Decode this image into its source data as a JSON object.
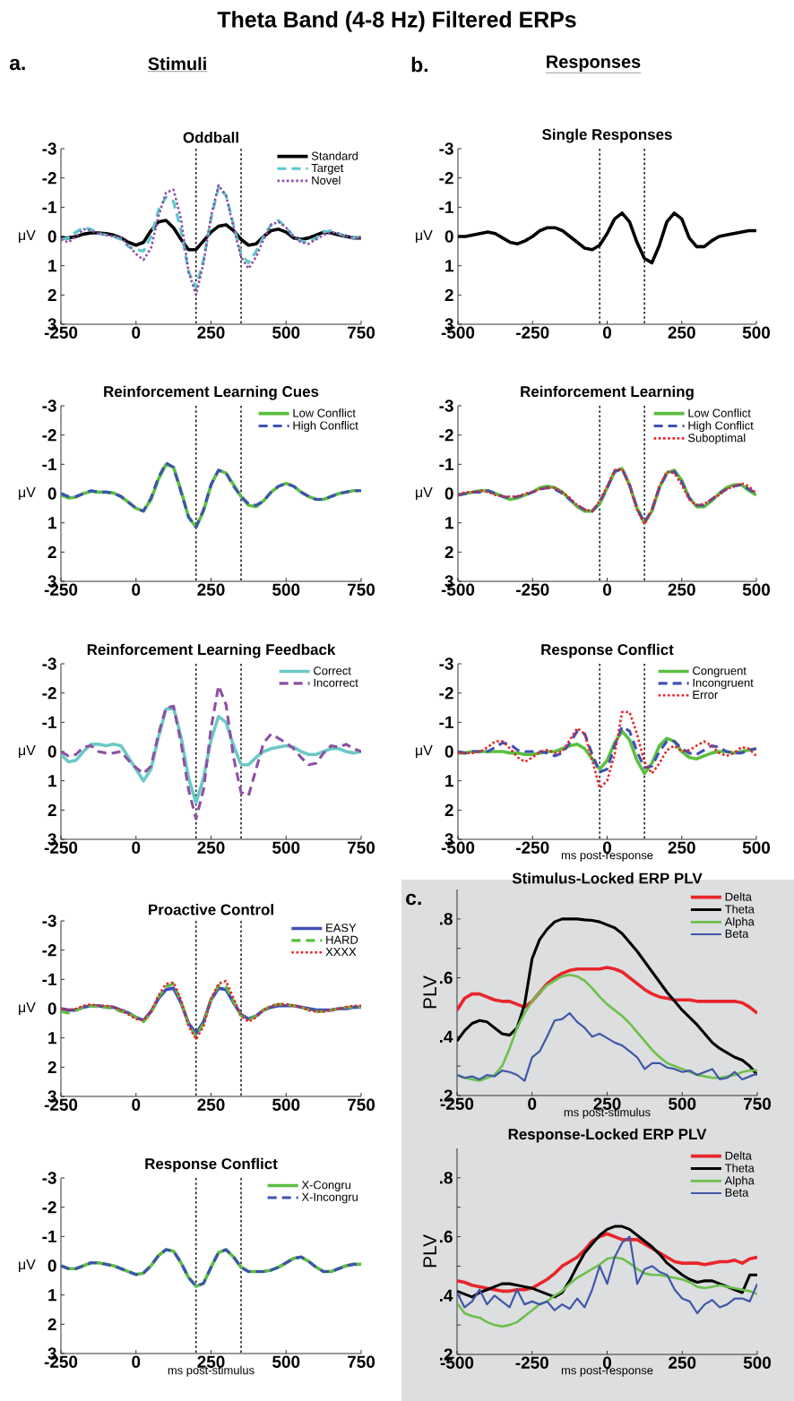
{
  "chart_data": [
    {
      "type": "line",
      "title": "Oddball",
      "ylabel": "μV",
      "annotations": [
        "Theta Band (4-8 Hz) Filtered ERPs",
        "a.",
        "Stimuli"
      ],
      "legend": "top right",
      "xlim": [
        -250,
        750
      ],
      "xticks": [
        -250,
        0,
        250,
        500,
        750
      ],
      "ylim": [
        3,
        -3
      ],
      "yticks": [
        -3,
        -2,
        -1,
        0,
        1,
        2,
        3
      ],
      "x": [
        -250,
        -225,
        -200,
        -175,
        -150,
        -125,
        -100,
        -75,
        -50,
        -25,
        0,
        25,
        50,
        75,
        100,
        125,
        150,
        175,
        200,
        225,
        250,
        275,
        300,
        325,
        350,
        375,
        400,
        425,
        450,
        475,
        500,
        525,
        550,
        575,
        600,
        625,
        650,
        675,
        700,
        725,
        750
      ],
      "ref_lines": [
        {
          "axis": "x",
          "value": 200,
          "color": "#000000",
          "line_style": "dotted"
        },
        {
          "axis": "x",
          "value": 350,
          "color": "#000000",
          "line_style": "dotted"
        }
      ],
      "series": [
        {
          "name": "Standard",
          "color": "#000000",
          "line_style": "solid",
          "values": [
            0.05,
            0.05,
            0,
            -0.08,
            -0.12,
            -0.12,
            -0.1,
            -0.05,
            0.05,
            0.2,
            0.3,
            0.2,
            -0.2,
            -0.5,
            -0.55,
            -0.3,
            0.1,
            0.45,
            0.45,
            0.15,
            -0.15,
            -0.35,
            -0.4,
            -0.2,
            0.1,
            0.3,
            0.25,
            0,
            -0.2,
            -0.25,
            -0.15,
            0.05,
            0.1,
            0.05,
            -0.05,
            -0.15,
            -0.12,
            -0.05,
            0,
            0.05,
            0.05
          ]
        },
        {
          "name": "Target",
          "color": "#5bc8cc",
          "line_style": "dashed",
          "values": [
            0.1,
            0.05,
            -0.15,
            -0.3,
            -0.25,
            -0.1,
            -0.05,
            0,
            0.1,
            0.35,
            0.45,
            0.5,
            0,
            -0.9,
            -1.35,
            -1.2,
            -0.2,
            1.2,
            1.75,
            0.8,
            -0.6,
            -1.7,
            -1.4,
            -0.4,
            0.6,
            0.9,
            0.5,
            0,
            -0.4,
            -0.55,
            -0.3,
            0,
            0.15,
            0.2,
            0.05,
            -0.15,
            -0.2,
            -0.1,
            0,
            0.05,
            0
          ]
        },
        {
          "name": "Novel",
          "color": "#8e50a6",
          "line_style": "dotted",
          "values": [
            0.1,
            0.2,
            0,
            -0.25,
            -0.2,
            -0.1,
            -0.05,
            0,
            0.05,
            0.3,
            0.6,
            0.8,
            0.4,
            -0.7,
            -1.5,
            -1.6,
            -0.6,
            1.2,
            2.0,
            0.9,
            -0.7,
            -1.75,
            -1.4,
            -0.3,
            0.7,
            1.1,
            0.7,
            0.1,
            -0.4,
            -0.5,
            -0.3,
            0,
            0.2,
            0.25,
            0.1,
            -0.05,
            -0.15,
            -0.1,
            0,
            0.05,
            0.05
          ]
        }
      ]
    },
    {
      "type": "line",
      "title": "Reinforcement Learning Cues",
      "ylabel": "μV",
      "legend": "top right",
      "xlim": [
        -250,
        750
      ],
      "xticks": [
        -250,
        0,
        250,
        500,
        750
      ],
      "ylim": [
        3,
        -3
      ],
      "yticks": [
        -3,
        -2,
        -1,
        0,
        1,
        2,
        3
      ],
      "x": [
        -250,
        -225,
        -200,
        -175,
        -150,
        -125,
        -100,
        -75,
        -50,
        -25,
        0,
        25,
        50,
        75,
        100,
        125,
        150,
        175,
        200,
        225,
        250,
        275,
        300,
        325,
        350,
        375,
        400,
        425,
        450,
        475,
        500,
        525,
        550,
        575,
        600,
        625,
        650,
        675,
        700,
        725,
        750
      ],
      "ref_lines": [
        {
          "axis": "x",
          "value": 200,
          "color": "#000000",
          "line_style": "dotted"
        },
        {
          "axis": "x",
          "value": 350,
          "color": "#000000",
          "line_style": "dotted"
        }
      ],
      "series": [
        {
          "name": "Low Conflict",
          "color": "#5cbf3f",
          "line_style": "solid",
          "values": [
            0.05,
            0.15,
            0.12,
            0,
            -0.08,
            -0.05,
            -0.05,
            -0.02,
            0.1,
            0.3,
            0.5,
            0.6,
            0.2,
            -0.5,
            -1.0,
            -0.9,
            -0.1,
            0.8,
            1.15,
            0.6,
            -0.3,
            -0.8,
            -0.7,
            -0.3,
            0.1,
            0.4,
            0.45,
            0.25,
            -0.05,
            -0.25,
            -0.35,
            -0.25,
            -0.05,
            0.1,
            0.2,
            0.2,
            0.1,
            0,
            -0.05,
            -0.1,
            -0.1
          ]
        },
        {
          "name": "High Conflict",
          "color": "#3f51b5",
          "line_style": "dashed",
          "values": [
            0,
            0.1,
            0.1,
            0,
            -0.1,
            -0.05,
            -0.05,
            -0.02,
            0.1,
            0.3,
            0.5,
            0.6,
            0.15,
            -0.55,
            -1.05,
            -0.9,
            -0.05,
            0.8,
            1.15,
            0.55,
            -0.3,
            -0.8,
            -0.7,
            -0.25,
            0.1,
            0.35,
            0.4,
            0.25,
            -0.05,
            -0.25,
            -0.35,
            -0.25,
            -0.05,
            0.1,
            0.2,
            0.2,
            0.1,
            0,
            -0.05,
            -0.1,
            -0.1
          ]
        }
      ]
    },
    {
      "type": "line",
      "title": "Reinforcement Learning Feedback",
      "ylabel": "μV",
      "legend": "top right",
      "xlim": [
        -250,
        750
      ],
      "xticks": [
        -250,
        0,
        250,
        500,
        750
      ],
      "ylim": [
        3,
        -3
      ],
      "yticks": [
        -3,
        -2,
        -1,
        0,
        1,
        2,
        3
      ],
      "x": [
        -250,
        -225,
        -200,
        -175,
        -150,
        -125,
        -100,
        -75,
        -50,
        -25,
        0,
        25,
        50,
        75,
        100,
        125,
        150,
        175,
        200,
        225,
        250,
        275,
        300,
        325,
        350,
        375,
        400,
        425,
        450,
        475,
        500,
        525,
        550,
        575,
        600,
        625,
        650,
        675,
        700,
        725,
        750
      ],
      "ref_lines": [
        {
          "axis": "x",
          "value": 200,
          "color": "#000000",
          "line_style": "dotted"
        },
        {
          "axis": "x",
          "value": 350,
          "color": "#000000",
          "line_style": "dotted"
        }
      ],
      "series": [
        {
          "name": "Correct",
          "color": "#6cc9c4",
          "line_style": "solid",
          "values": [
            0.1,
            0.35,
            0.3,
            0,
            -0.25,
            -0.25,
            -0.2,
            -0.25,
            -0.2,
            0.2,
            0.6,
            1.0,
            0.6,
            -0.5,
            -1.45,
            -1.5,
            -0.5,
            0.9,
            1.75,
            0.9,
            -0.4,
            -1.2,
            -1.0,
            -0.2,
            0.45,
            0.45,
            0.2,
            0,
            -0.1,
            -0.15,
            -0.2,
            -0.15,
            0,
            0.1,
            0.1,
            0,
            -0.1,
            -0.1,
            0,
            0.05,
            0
          ]
        },
        {
          "name": "Incorrect",
          "color": "#8e50a6",
          "line_style": "dashed",
          "values": [
            0,
            0.15,
            0.1,
            -0.15,
            -0.2,
            0,
            0.05,
            0.05,
            0,
            0.3,
            0.55,
            0.75,
            0.5,
            -0.6,
            -1.5,
            -1.55,
            -0.3,
            1.3,
            2.3,
            1.3,
            -0.8,
            -2.25,
            -1.6,
            0.2,
            1.4,
            1.5,
            0.6,
            -0.3,
            -0.6,
            -0.45,
            -0.3,
            -0.1,
            0.2,
            0.45,
            0.4,
            0.05,
            -0.2,
            -0.15,
            -0.25,
            -0.1,
            0
          ]
        }
      ]
    },
    {
      "type": "line",
      "title": "Proactive Control",
      "ylabel": "μV",
      "legend": "top right",
      "xlim": [
        -250,
        750
      ],
      "xticks": [
        -250,
        0,
        250,
        500,
        750
      ],
      "ylim": [
        3,
        -3
      ],
      "yticks": [
        -3,
        -2,
        -1,
        0,
        1,
        2,
        3
      ],
      "x": [
        -250,
        -225,
        -200,
        -175,
        -150,
        -125,
        -100,
        -75,
        -50,
        -25,
        0,
        25,
        50,
        75,
        100,
        125,
        150,
        175,
        200,
        225,
        250,
        275,
        300,
        325,
        350,
        375,
        400,
        425,
        450,
        475,
        500,
        525,
        550,
        575,
        600,
        625,
        650,
        675,
        700,
        725,
        750
      ],
      "ref_lines": [
        {
          "axis": "x",
          "value": 200,
          "color": "#000000",
          "line_style": "dotted"
        },
        {
          "axis": "x",
          "value": 350,
          "color": "#000000",
          "line_style": "dotted"
        }
      ],
      "series": [
        {
          "name": "EASY",
          "color": "#3f51b5",
          "line_style": "solid",
          "values": [
            0,
            0.05,
            0.05,
            -0.05,
            -0.1,
            -0.1,
            -0.05,
            -0.05,
            0.05,
            0.15,
            0.3,
            0.4,
            0.1,
            -0.35,
            -0.65,
            -0.7,
            -0.2,
            0.5,
            0.85,
            0.45,
            -0.3,
            -0.7,
            -0.65,
            -0.2,
            0.2,
            0.35,
            0.25,
            0.05,
            -0.05,
            -0.1,
            -0.1,
            -0.1,
            -0.05,
            0,
            0.05,
            0.05,
            0.05,
            0,
            0,
            -0.05,
            -0.05
          ]
        },
        {
          "name": "HARD",
          "color": "#5cbf3f",
          "line_style": "dashed",
          "values": [
            0.1,
            0.15,
            0.05,
            -0.05,
            -0.1,
            -0.05,
            -0.05,
            0,
            0.1,
            0.15,
            0.3,
            0.45,
            0.15,
            -0.4,
            -0.75,
            -0.85,
            -0.25,
            0.55,
            0.95,
            0.5,
            -0.3,
            -0.8,
            -0.75,
            -0.25,
            0.25,
            0.4,
            0.25,
            0.05,
            -0.1,
            -0.15,
            -0.15,
            -0.1,
            -0.05,
            0.05,
            0.1,
            0.1,
            0.05,
            0,
            -0.05,
            -0.05,
            -0.05
          ]
        },
        {
          "name": "XXXX",
          "color": "#e8262a",
          "line_style": "dotted",
          "values": [
            0,
            0.05,
            0,
            -0.1,
            -0.15,
            -0.1,
            -0.1,
            -0.05,
            0.05,
            0.2,
            0.35,
            0.4,
            0.1,
            -0.45,
            -0.85,
            -0.9,
            -0.3,
            0.6,
            1.05,
            0.6,
            -0.35,
            -0.85,
            -0.95,
            -0.35,
            0.25,
            0.45,
            0.3,
            0.05,
            -0.1,
            -0.15,
            -0.15,
            -0.1,
            -0.05,
            0.05,
            0.1,
            0.1,
            0.05,
            0,
            -0.05,
            -0.1,
            -0.1
          ]
        }
      ]
    },
    {
      "type": "line",
      "title": "Response Conflict",
      "ylabel": "μV",
      "xlabel": "ms post-stimulus",
      "legend": "top right",
      "xlim": [
        -250,
        750
      ],
      "xticks": [
        -250,
        0,
        250,
        500,
        750
      ],
      "ylim": [
        3,
        -3
      ],
      "yticks": [
        -3,
        -2,
        -1,
        0,
        1,
        2,
        3
      ],
      "x": [
        -250,
        -225,
        -200,
        -175,
        -150,
        -125,
        -100,
        -75,
        -50,
        -25,
        0,
        25,
        50,
        75,
        100,
        125,
        150,
        175,
        200,
        225,
        250,
        275,
        300,
        325,
        350,
        375,
        400,
        425,
        450,
        475,
        500,
        525,
        550,
        575,
        600,
        625,
        650,
        675,
        700,
        725,
        750
      ],
      "ref_lines": [
        {
          "axis": "x",
          "value": 200,
          "color": "#000000",
          "line_style": "dotted"
        },
        {
          "axis": "x",
          "value": 350,
          "color": "#000000",
          "line_style": "dotted"
        }
      ],
      "series": [
        {
          "name": "X-Congru",
          "color": "#5cbf3f",
          "line_style": "solid",
          "values": [
            0,
            0.1,
            0.1,
            0,
            -0.1,
            -0.1,
            -0.05,
            0,
            0.1,
            0.2,
            0.3,
            0.25,
            0,
            -0.35,
            -0.55,
            -0.5,
            -0.1,
            0.4,
            0.7,
            0.6,
            0.05,
            -0.45,
            -0.55,
            -0.3,
            0.05,
            0.2,
            0.2,
            0.2,
            0.15,
            0.05,
            -0.1,
            -0.25,
            -0.3,
            -0.15,
            0.05,
            0.2,
            0.2,
            0.1,
            0,
            -0.05,
            -0.05
          ]
        },
        {
          "name": "X-Incongru",
          "color": "#3f51b5",
          "line_style": "dashed",
          "values": [
            0,
            0.1,
            0.1,
            0,
            -0.1,
            -0.1,
            -0.05,
            0,
            0.1,
            0.2,
            0.3,
            0.25,
            0,
            -0.35,
            -0.55,
            -0.5,
            -0.1,
            0.4,
            0.7,
            0.6,
            0.05,
            -0.45,
            -0.55,
            -0.3,
            0.05,
            0.2,
            0.2,
            0.2,
            0.15,
            0.05,
            -0.1,
            -0.25,
            -0.3,
            -0.15,
            0.05,
            0.2,
            0.2,
            0.1,
            0,
            -0.05,
            -0.05
          ]
        }
      ]
    },
    {
      "type": "line",
      "title": "Single Responses",
      "ylabel": "μV",
      "annotations": [
        "b.",
        "Responses"
      ],
      "xlim": [
        -500,
        500
      ],
      "xticks": [
        -500,
        -250,
        0,
        250,
        500
      ],
      "ylim": [
        3,
        -3
      ],
      "yticks": [
        -3,
        -2,
        -1,
        0,
        1,
        2,
        3
      ],
      "x": [
        -500,
        -475,
        -450,
        -425,
        -400,
        -375,
        -350,
        -325,
        -300,
        -275,
        -250,
        -225,
        -200,
        -175,
        -150,
        -125,
        -100,
        -75,
        -50,
        -25,
        0,
        25,
        50,
        75,
        100,
        125,
        150,
        175,
        200,
        225,
        250,
        275,
        300,
        325,
        350,
        375,
        400,
        425,
        450,
        475,
        500
      ],
      "ref_lines": [
        {
          "axis": "x",
          "value": -25,
          "color": "#000000",
          "line_style": "dotted"
        },
        {
          "axis": "x",
          "value": 125,
          "color": "#000000",
          "line_style": "dotted"
        }
      ],
      "series": [
        {
          "color": "#000000",
          "line_style": "solid",
          "values": [
            0,
            0,
            -0.05,
            -0.1,
            -0.15,
            -0.1,
            0.05,
            0.2,
            0.25,
            0.15,
            0,
            -0.2,
            -0.3,
            -0.3,
            -0.2,
            0,
            0.2,
            0.4,
            0.45,
            0.3,
            -0.1,
            -0.6,
            -0.8,
            -0.5,
            0.2,
            0.75,
            0.9,
            0.3,
            -0.5,
            -0.8,
            -0.6,
            0.05,
            0.35,
            0.35,
            0.15,
            0,
            -0.05,
            -0.1,
            -0.15,
            -0.2,
            -0.2
          ]
        }
      ]
    },
    {
      "type": "line",
      "title": "Reinforcement Learning",
      "ylabel": "μV",
      "legend": "top right",
      "xlim": [
        -500,
        500
      ],
      "xticks": [
        -500,
        -250,
        0,
        250,
        500
      ],
      "ylim": [
        3,
        -3
      ],
      "yticks": [
        -3,
        -2,
        -1,
        0,
        1,
        2,
        3
      ],
      "x": [
        -500,
        -475,
        -450,
        -425,
        -400,
        -375,
        -350,
        -325,
        -300,
        -275,
        -250,
        -225,
        -200,
        -175,
        -150,
        -125,
        -100,
        -75,
        -50,
        -25,
        0,
        25,
        50,
        75,
        100,
        125,
        150,
        175,
        200,
        225,
        250,
        275,
        300,
        325,
        350,
        375,
        400,
        425,
        450,
        475,
        500
      ],
      "ref_lines": [
        {
          "axis": "x",
          "value": -25,
          "color": "#000000",
          "line_style": "dotted"
        },
        {
          "axis": "x",
          "value": 125,
          "color": "#000000",
          "line_style": "dotted"
        }
      ],
      "series": [
        {
          "name": "Low Conflict",
          "color": "#5cbf3f",
          "line_style": "solid",
          "values": [
            0.05,
            0,
            -0.05,
            -0.1,
            -0.1,
            0,
            0.1,
            0.2,
            0.15,
            0.05,
            -0.05,
            -0.2,
            -0.25,
            -0.2,
            -0.05,
            0.2,
            0.45,
            0.6,
            0.6,
            0.35,
            -0.2,
            -0.75,
            -0.85,
            -0.3,
            0.5,
            1.0,
            0.6,
            -0.2,
            -0.7,
            -0.8,
            -0.45,
            0.15,
            0.45,
            0.45,
            0.25,
            0,
            -0.2,
            -0.3,
            -0.3,
            -0.1,
            0.05
          ]
        },
        {
          "name": "High Conflict",
          "color": "#3f51b5",
          "line_style": "dashed",
          "values": [
            0.05,
            0,
            -0.05,
            -0.05,
            -0.1,
            0,
            0.1,
            0.15,
            0.1,
            0.05,
            -0.05,
            -0.15,
            -0.2,
            -0.15,
            0,
            0.2,
            0.4,
            0.55,
            0.6,
            0.3,
            -0.2,
            -0.75,
            -0.85,
            -0.3,
            0.5,
            1.0,
            0.55,
            -0.2,
            -0.7,
            -0.75,
            -0.4,
            0.15,
            0.4,
            0.4,
            0.2,
            0,
            -0.15,
            -0.25,
            -0.3,
            -0.15,
            0
          ]
        },
        {
          "name": "Suboptimal",
          "color": "#e8262a",
          "line_style": "dotted",
          "values": [
            0.05,
            -0.05,
            -0.05,
            -0.1,
            -0.05,
            0.05,
            0.1,
            0.1,
            0.1,
            0,
            -0.05,
            -0.15,
            -0.2,
            -0.2,
            -0.05,
            0.15,
            0.4,
            0.55,
            0.6,
            0.25,
            -0.25,
            -0.8,
            -0.85,
            -0.25,
            0.55,
            1.05,
            0.55,
            -0.25,
            -0.75,
            -0.7,
            -0.3,
            0.2,
            0.4,
            0.35,
            0.2,
            0.05,
            -0.15,
            -0.25,
            -0.35,
            -0.25,
            0
          ]
        }
      ]
    },
    {
      "type": "line",
      "title": "Response Conflict",
      "ylabel": "μV",
      "xlabel": "ms post-response",
      "legend": "top right",
      "xlim": [
        -500,
        500
      ],
      "xticks": [
        -500,
        -250,
        0,
        250,
        500
      ],
      "ylim": [
        3,
        -3
      ],
      "yticks": [
        -3,
        -2,
        -1,
        0,
        1,
        2,
        3
      ],
      "x": [
        -500,
        -475,
        -450,
        -425,
        -400,
        -375,
        -350,
        -325,
        -300,
        -275,
        -250,
        -225,
        -200,
        -175,
        -150,
        -125,
        -100,
        -75,
        -50,
        -25,
        0,
        25,
        50,
        75,
        100,
        125,
        150,
        175,
        200,
        225,
        250,
        275,
        300,
        325,
        350,
        375,
        400,
        425,
        450,
        475,
        500
      ],
      "ref_lines": [
        {
          "axis": "x",
          "value": -25,
          "color": "#000000",
          "line_style": "dotted"
        },
        {
          "axis": "x",
          "value": 125,
          "color": "#000000",
          "line_style": "dotted"
        }
      ],
      "series": [
        {
          "name": "Congruent",
          "color": "#5cbf3f",
          "line_style": "solid",
          "values": [
            0.05,
            0.05,
            0,
            0,
            0,
            0,
            0,
            0.05,
            0.05,
            0.1,
            0.1,
            0.05,
            0,
            0,
            -0.1,
            -0.2,
            -0.25,
            -0.1,
            0.25,
            0.6,
            0.3,
            -0.3,
            -0.7,
            -0.4,
            0.3,
            0.75,
            0.4,
            -0.2,
            -0.45,
            -0.35,
            0,
            0.2,
            0.25,
            0.15,
            0.05,
            0,
            0,
            0.05,
            0,
            -0.05,
            -0.1
          ]
        },
        {
          "name": "Incongruent",
          "color": "#3f51b5",
          "line_style": "dashed",
          "values": [
            0,
            0.05,
            0,
            0,
            0,
            -0.15,
            -0.3,
            -0.25,
            -0.05,
            0,
            0,
            0,
            0.05,
            0.15,
            0.05,
            -0.3,
            -0.7,
            -0.6,
            0.1,
            0.7,
            0.6,
            -0.2,
            -0.85,
            -0.7,
            0,
            0.55,
            0.5,
            0,
            -0.35,
            -0.35,
            -0.1,
            0.05,
            0.1,
            -0.05,
            -0.2,
            -0.15,
            0,
            0.05,
            0.05,
            -0.05,
            -0.1
          ]
        },
        {
          "name": "Error",
          "color": "#e8262a",
          "line_style": "dotted",
          "values": [
            0.05,
            0.05,
            0.05,
            0,
            -0.15,
            -0.35,
            -0.35,
            -0.1,
            0.2,
            0.35,
            0.2,
            0,
            -0.05,
            0.05,
            0,
            -0.4,
            -0.8,
            -0.6,
            0.3,
            1.25,
            1.0,
            0.1,
            -1.35,
            -1.35,
            -0.6,
            0.35,
            0.75,
            0.4,
            -0.05,
            -0.2,
            0,
            -0.05,
            -0.2,
            -0.35,
            -0.2,
            0.05,
            0.15,
            0.05,
            -0.15,
            -0.1,
            0.15
          ]
        }
      ]
    },
    {
      "type": "line",
      "title": "Stimulus-Locked ERP PLV",
      "ylabel": "PLV",
      "xlabel": "ms post-stimulus",
      "annotations": [
        "c."
      ],
      "legend": "top right",
      "xlim": [
        -250,
        750
      ],
      "xticks": [
        -250,
        0,
        250,
        500,
        750
      ],
      "ylim": [
        0.2,
        0.9
      ],
      "yticks": [
        {
          "value": 0.2,
          "label": ".2"
        },
        {
          "value": 0.3,
          "label": null
        },
        {
          "value": 0.4,
          "label": ".4"
        },
        {
          "value": 0.5,
          "label": null
        },
        {
          "value": 0.6,
          "label": ".6"
        },
        {
          "value": 0.7,
          "label": null
        },
        {
          "value": 0.8,
          "label": ".8"
        }
      ],
      "x": [
        -250,
        -225,
        -200,
        -175,
        -150,
        -125,
        -100,
        -75,
        -50,
        -25,
        0,
        25,
        50,
        75,
        100,
        125,
        150,
        175,
        200,
        225,
        250,
        275,
        300,
        325,
        350,
        375,
        400,
        425,
        450,
        475,
        500,
        525,
        550,
        575,
        600,
        625,
        650,
        675,
        700,
        725,
        750
      ],
      "series": [
        {
          "name": "Delta",
          "color": "#e8262a",
          "line_style": "solid",
          "values": [
            0.49,
            0.53,
            0.545,
            0.545,
            0.535,
            0.525,
            0.52,
            0.52,
            0.51,
            0.5,
            0.52,
            0.55,
            0.58,
            0.6,
            0.615,
            0.625,
            0.63,
            0.63,
            0.63,
            0.63,
            0.635,
            0.63,
            0.62,
            0.6,
            0.58,
            0.56,
            0.545,
            0.535,
            0.53,
            0.525,
            0.525,
            0.525,
            0.52,
            0.52,
            0.52,
            0.52,
            0.52,
            0.52,
            0.515,
            0.5,
            0.48
          ]
        },
        {
          "name": "Theta",
          "color": "#000000",
          "line_style": "solid",
          "values": [
            0.385,
            0.42,
            0.445,
            0.455,
            0.45,
            0.43,
            0.41,
            0.405,
            0.43,
            0.51,
            0.665,
            0.73,
            0.765,
            0.79,
            0.8,
            0.8,
            0.8,
            0.797,
            0.795,
            0.79,
            0.78,
            0.77,
            0.75,
            0.72,
            0.69,
            0.655,
            0.62,
            0.585,
            0.55,
            0.52,
            0.49,
            0.465,
            0.44,
            0.41,
            0.38,
            0.36,
            0.345,
            0.33,
            0.32,
            0.3,
            0.27
          ]
        },
        {
          "name": "Alpha",
          "color": "#6cc04a",
          "line_style": "solid",
          "values": [
            0.27,
            0.26,
            0.255,
            0.25,
            0.26,
            0.27,
            0.3,
            0.36,
            0.43,
            0.48,
            0.52,
            0.55,
            0.575,
            0.59,
            0.605,
            0.61,
            0.605,
            0.59,
            0.565,
            0.535,
            0.51,
            0.49,
            0.47,
            0.445,
            0.415,
            0.385,
            0.355,
            0.33,
            0.31,
            0.3,
            0.29,
            0.28,
            0.27,
            0.265,
            0.26,
            0.26,
            0.265,
            0.27,
            0.28,
            0.285,
            0.285
          ]
        },
        {
          "name": "Beta",
          "color": "#4057a8",
          "line_style": "solid",
          "values": [
            0.27,
            0.26,
            0.265,
            0.255,
            0.27,
            0.265,
            0.285,
            0.28,
            0.27,
            0.25,
            0.33,
            0.35,
            0.4,
            0.455,
            0.46,
            0.48,
            0.45,
            0.43,
            0.4,
            0.41,
            0.395,
            0.38,
            0.37,
            0.35,
            0.33,
            0.29,
            0.31,
            0.31,
            0.295,
            0.29,
            0.28,
            0.285,
            0.27,
            0.28,
            0.29,
            0.255,
            0.26,
            0.28,
            0.255,
            0.265,
            0.275
          ]
        }
      ]
    },
    {
      "type": "line",
      "title": "Response-Locked ERP PLV",
      "ylabel": "PLV",
      "xlabel": "ms post-response",
      "legend": "top right",
      "xlim": [
        -500,
        500
      ],
      "xticks": [
        -500,
        -250,
        0,
        250,
        500
      ],
      "ylim": [
        0.2,
        0.9
      ],
      "yticks": [
        {
          "value": 0.2,
          "label": ".2"
        },
        {
          "value": 0.3,
          "label": null
        },
        {
          "value": 0.4,
          "label": ".4"
        },
        {
          "value": 0.5,
          "label": null
        },
        {
          "value": 0.6,
          "label": ".6"
        },
        {
          "value": 0.7,
          "label": null
        },
        {
          "value": 0.8,
          "label": ".8"
        }
      ],
      "x": [
        -500,
        -475,
        -450,
        -425,
        -400,
        -375,
        -350,
        -325,
        -300,
        -275,
        -250,
        -225,
        -200,
        -175,
        -150,
        -125,
        -100,
        -75,
        -50,
        -25,
        0,
        25,
        50,
        75,
        100,
        125,
        150,
        175,
        200,
        225,
        250,
        275,
        300,
        325,
        350,
        375,
        400,
        425,
        450,
        475,
        500
      ],
      "series": [
        {
          "name": "Delta",
          "color": "#e8262a",
          "line_style": "solid",
          "values": [
            0.45,
            0.445,
            0.435,
            0.43,
            0.425,
            0.42,
            0.415,
            0.415,
            0.42,
            0.42,
            0.425,
            0.44,
            0.455,
            0.475,
            0.5,
            0.515,
            0.53,
            0.555,
            0.585,
            0.6,
            0.61,
            0.6,
            0.59,
            0.59,
            0.59,
            0.575,
            0.56,
            0.545,
            0.53,
            0.515,
            0.51,
            0.51,
            0.51,
            0.505,
            0.51,
            0.515,
            0.515,
            0.52,
            0.51,
            0.525,
            0.53
          ]
        },
        {
          "name": "Theta",
          "color": "#000000",
          "line_style": "solid",
          "values": [
            0.415,
            0.405,
            0.395,
            0.41,
            0.42,
            0.43,
            0.44,
            0.44,
            0.435,
            0.43,
            0.425,
            0.415,
            0.405,
            0.395,
            0.41,
            0.45,
            0.5,
            0.545,
            0.575,
            0.605,
            0.625,
            0.635,
            0.635,
            0.625,
            0.605,
            0.585,
            0.565,
            0.54,
            0.51,
            0.49,
            0.47,
            0.455,
            0.445,
            0.45,
            0.45,
            0.44,
            0.43,
            0.42,
            0.41,
            0.47,
            0.47
          ]
        },
        {
          "name": "Alpha",
          "color": "#6cc04a",
          "line_style": "solid",
          "values": [
            0.375,
            0.34,
            0.33,
            0.325,
            0.31,
            0.3,
            0.295,
            0.3,
            0.31,
            0.33,
            0.35,
            0.37,
            0.38,
            0.4,
            0.415,
            0.44,
            0.46,
            0.475,
            0.49,
            0.505,
            0.525,
            0.53,
            0.525,
            0.51,
            0.49,
            0.475,
            0.47,
            0.47,
            0.465,
            0.46,
            0.455,
            0.445,
            0.43,
            0.425,
            0.43,
            0.435,
            0.43,
            0.425,
            0.42,
            0.415,
            0.405
          ]
        },
        {
          "name": "Beta",
          "color": "#4057a8",
          "line_style": "solid",
          "values": [
            0.41,
            0.36,
            0.38,
            0.42,
            0.37,
            0.4,
            0.38,
            0.36,
            0.42,
            0.37,
            0.38,
            0.37,
            0.38,
            0.35,
            0.37,
            0.355,
            0.39,
            0.36,
            0.42,
            0.5,
            0.44,
            0.53,
            0.58,
            0.6,
            0.44,
            0.49,
            0.5,
            0.48,
            0.47,
            0.42,
            0.39,
            0.38,
            0.34,
            0.37,
            0.385,
            0.36,
            0.37,
            0.39,
            0.39,
            0.38,
            0.44
          ]
        }
      ]
    }
  ]
}
